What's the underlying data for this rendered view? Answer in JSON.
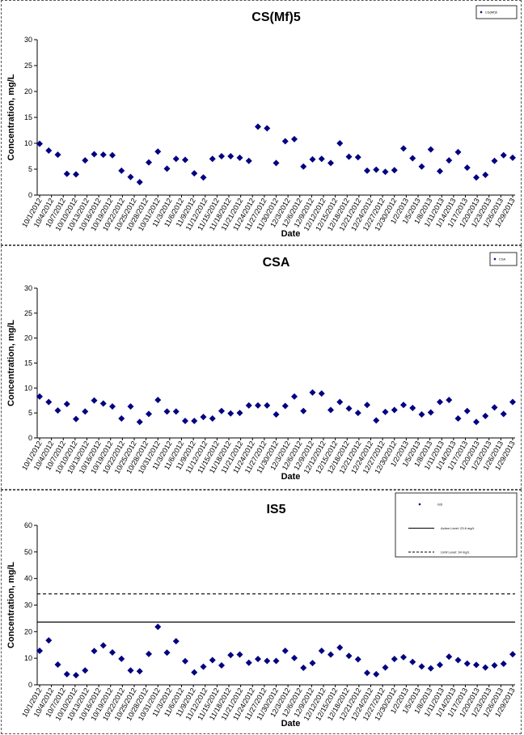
{
  "chart_data": [
    {
      "type": "scatter",
      "title": "CS(Mf)5",
      "xlabel": "Date",
      "ylabel": "Concentration, mg/L",
      "ylim": [
        0,
        30
      ],
      "yticks": [
        0,
        5,
        10,
        15,
        20,
        25,
        30
      ],
      "grid": false,
      "legend_position": "top-right",
      "series": [
        {
          "name": "CS(Mf)5",
          "color": "#000080",
          "marker": "diamond",
          "values": [
            9.9,
            8.6,
            7.8,
            4.1,
            4.0,
            6.7,
            7.9,
            7.8,
            7.7,
            4.7,
            3.5,
            2.5,
            6.3,
            8.4,
            5.1,
            7.0,
            6.8,
            4.2,
            3.4,
            7.0,
            7.5,
            7.5,
            7.2,
            6.6,
            13.2,
            12.9,
            6.2,
            10.4,
            10.8,
            5.5,
            6.9,
            7.0,
            6.2,
            10.0,
            7.4,
            7.3,
            4.7,
            4.9,
            4.5,
            4.8,
            9.0,
            7.1,
            5.5,
            8.8,
            4.6,
            6.7,
            8.3,
            5.3,
            3.4,
            3.9,
            6.6,
            7.7,
            7.2
          ]
        }
      ],
      "x_tick_labels": [
        "10/1/2012",
        "10/4/2012",
        "10/7/2012",
        "10/10/2012",
        "10/13/2012",
        "10/16/2012",
        "10/19/2012",
        "10/22/2012",
        "10/25/2012",
        "10/28/2012",
        "10/31/2012",
        "11/3/2012",
        "11/6/2012",
        "11/9/2012",
        "11/12/2012",
        "11/15/2012",
        "11/18/2012",
        "11/21/2012",
        "11/24/2012",
        "11/27/2012",
        "11/30/2012",
        "12/3/2012",
        "12/6/2012",
        "12/9/2012",
        "12/12/2012",
        "12/15/2012",
        "12/18/2012",
        "12/21/2012",
        "12/24/2012",
        "12/27/2012",
        "12/30/2012",
        "1/2/2013",
        "1/5/2013",
        "1/8/2013",
        "1/11/2013",
        "1/14/2013",
        "1/17/2013",
        "1/20/2013",
        "1/23/2013",
        "1/26/2013",
        "1/29/2013"
      ],
      "legend": [
        {
          "label": "CS(Mf)5",
          "type": "marker"
        }
      ]
    },
    {
      "type": "scatter",
      "title": "CSA",
      "xlabel": "Date",
      "ylabel": "Concentration, mg/L",
      "ylim": [
        0,
        30
      ],
      "yticks": [
        0,
        5,
        10,
        15,
        20,
        25,
        30
      ],
      "grid": false,
      "legend_position": "top-right",
      "series": [
        {
          "name": "CSA",
          "color": "#000080",
          "marker": "diamond",
          "values": [
            8.3,
            7.2,
            5.5,
            6.8,
            3.8,
            5.3,
            7.5,
            6.9,
            6.3,
            3.9,
            6.3,
            3.2,
            4.8,
            7.6,
            5.3,
            5.3,
            3.4,
            3.4,
            4.2,
            3.9,
            5.4,
            4.9,
            5.0,
            6.5,
            6.5,
            6.5,
            4.7,
            6.4,
            8.3,
            5.4,
            9.1,
            8.9,
            5.6,
            7.2,
            5.9,
            5.0,
            6.6,
            3.5,
            5.2,
            5.6,
            6.6,
            6.0,
            4.7,
            5.1,
            7.2,
            7.6,
            3.9,
            5.4,
            3.2,
            4.4,
            6.1,
            4.8,
            7.2
          ]
        }
      ],
      "x_tick_labels": [
        "10/1/2012",
        "10/4/2012",
        "10/7/2012",
        "10/10/2012",
        "10/13/2012",
        "10/16/2012",
        "10/19/2012",
        "10/22/2012",
        "10/25/2012",
        "10/28/2012",
        "10/31/2012",
        "11/3/2012",
        "11/6/2012",
        "11/9/2012",
        "11/12/2012",
        "11/15/2012",
        "11/18/2012",
        "11/21/2012",
        "11/24/2012",
        "11/27/2012",
        "11/30/2012",
        "12/3/2012",
        "12/6/2012",
        "12/9/2012",
        "12/12/2012",
        "12/15/2012",
        "12/18/2012",
        "12/21/2012",
        "12/24/2012",
        "12/27/2012",
        "12/30/2012",
        "1/2/2013",
        "1/5/2013",
        "1/8/2013",
        "1/11/2013",
        "1/14/2013",
        "1/17/2013",
        "1/20/2013",
        "1/23/2013",
        "1/26/2013",
        "1/29/2013"
      ],
      "legend": [
        {
          "label": "CSA",
          "type": "marker"
        }
      ]
    },
    {
      "type": "scatter",
      "title": "IS5",
      "xlabel": "Date",
      "ylabel": "Concentration, mg/L",
      "ylim": [
        0,
        60
      ],
      "yticks": [
        0,
        10,
        20,
        30,
        40,
        50,
        60
      ],
      "grid": false,
      "legend_position": "top-right",
      "series": [
        {
          "name": "IS5",
          "color": "#000080",
          "marker": "diamond",
          "values": [
            12.8,
            16.7,
            7.6,
            4.0,
            3.6,
            5.4,
            12.7,
            14.8,
            12.2,
            9.8,
            5.4,
            5.1,
            11.6,
            21.8,
            12.1,
            16.4,
            8.9,
            4.7,
            6.8,
            9.3,
            7.3,
            11.2,
            11.4,
            8.3,
            9.7,
            9.0,
            9.0,
            12.8,
            10.1,
            6.4,
            8.2,
            12.8,
            11.4,
            14.0,
            10.9,
            9.6,
            4.5,
            4.0,
            6.5,
            9.7,
            10.4,
            8.6,
            6.9,
            6.2,
            7.5,
            10.6,
            9.3,
            8.0,
            7.5,
            6.5,
            7.3,
            7.9,
            11.5
          ]
        },
        {
          "name": "Action Level: 23.6 mg/L",
          "type": "line",
          "style": "solid",
          "color": "#000000",
          "value": 23.6
        },
        {
          "name": "Limit Level: 34 mg/L",
          "type": "line",
          "style": "dashed",
          "color": "#000000",
          "value": 34.2
        }
      ],
      "x_tick_labels": [
        "10/1/2012",
        "10/4/2012",
        "10/7/2012",
        "10/10/2012",
        "10/13/2012",
        "10/16/2012",
        "10/19/2012",
        "10/22/2012",
        "10/25/2012",
        "10/28/2012",
        "10/31/2012",
        "11/3/2012",
        "11/6/2012",
        "11/9/2012",
        "11/12/2012",
        "11/15/2012",
        "11/18/2012",
        "11/21/2012",
        "11/24/2012",
        "11/27/2012",
        "11/30/2012",
        "12/3/2012",
        "12/6/2012",
        "12/9/2012",
        "12/12/2012",
        "12/15/2012",
        "12/18/2012",
        "12/21/2012",
        "12/24/2012",
        "12/27/2012",
        "12/30/2012",
        "1/2/2013",
        "1/5/2013",
        "1/8/2013",
        "1/11/2013",
        "1/14/2013",
        "1/17/2013",
        "1/20/2013",
        "1/23/2013",
        "1/26/2013",
        "1/29/2013"
      ],
      "legend": [
        {
          "label": "IS5",
          "type": "marker"
        },
        {
          "label": "Action Level: 23.6 mg/L",
          "type": "solid"
        },
        {
          "label": "Limit Level: 34 mg/L",
          "type": "dashed"
        }
      ]
    }
  ]
}
